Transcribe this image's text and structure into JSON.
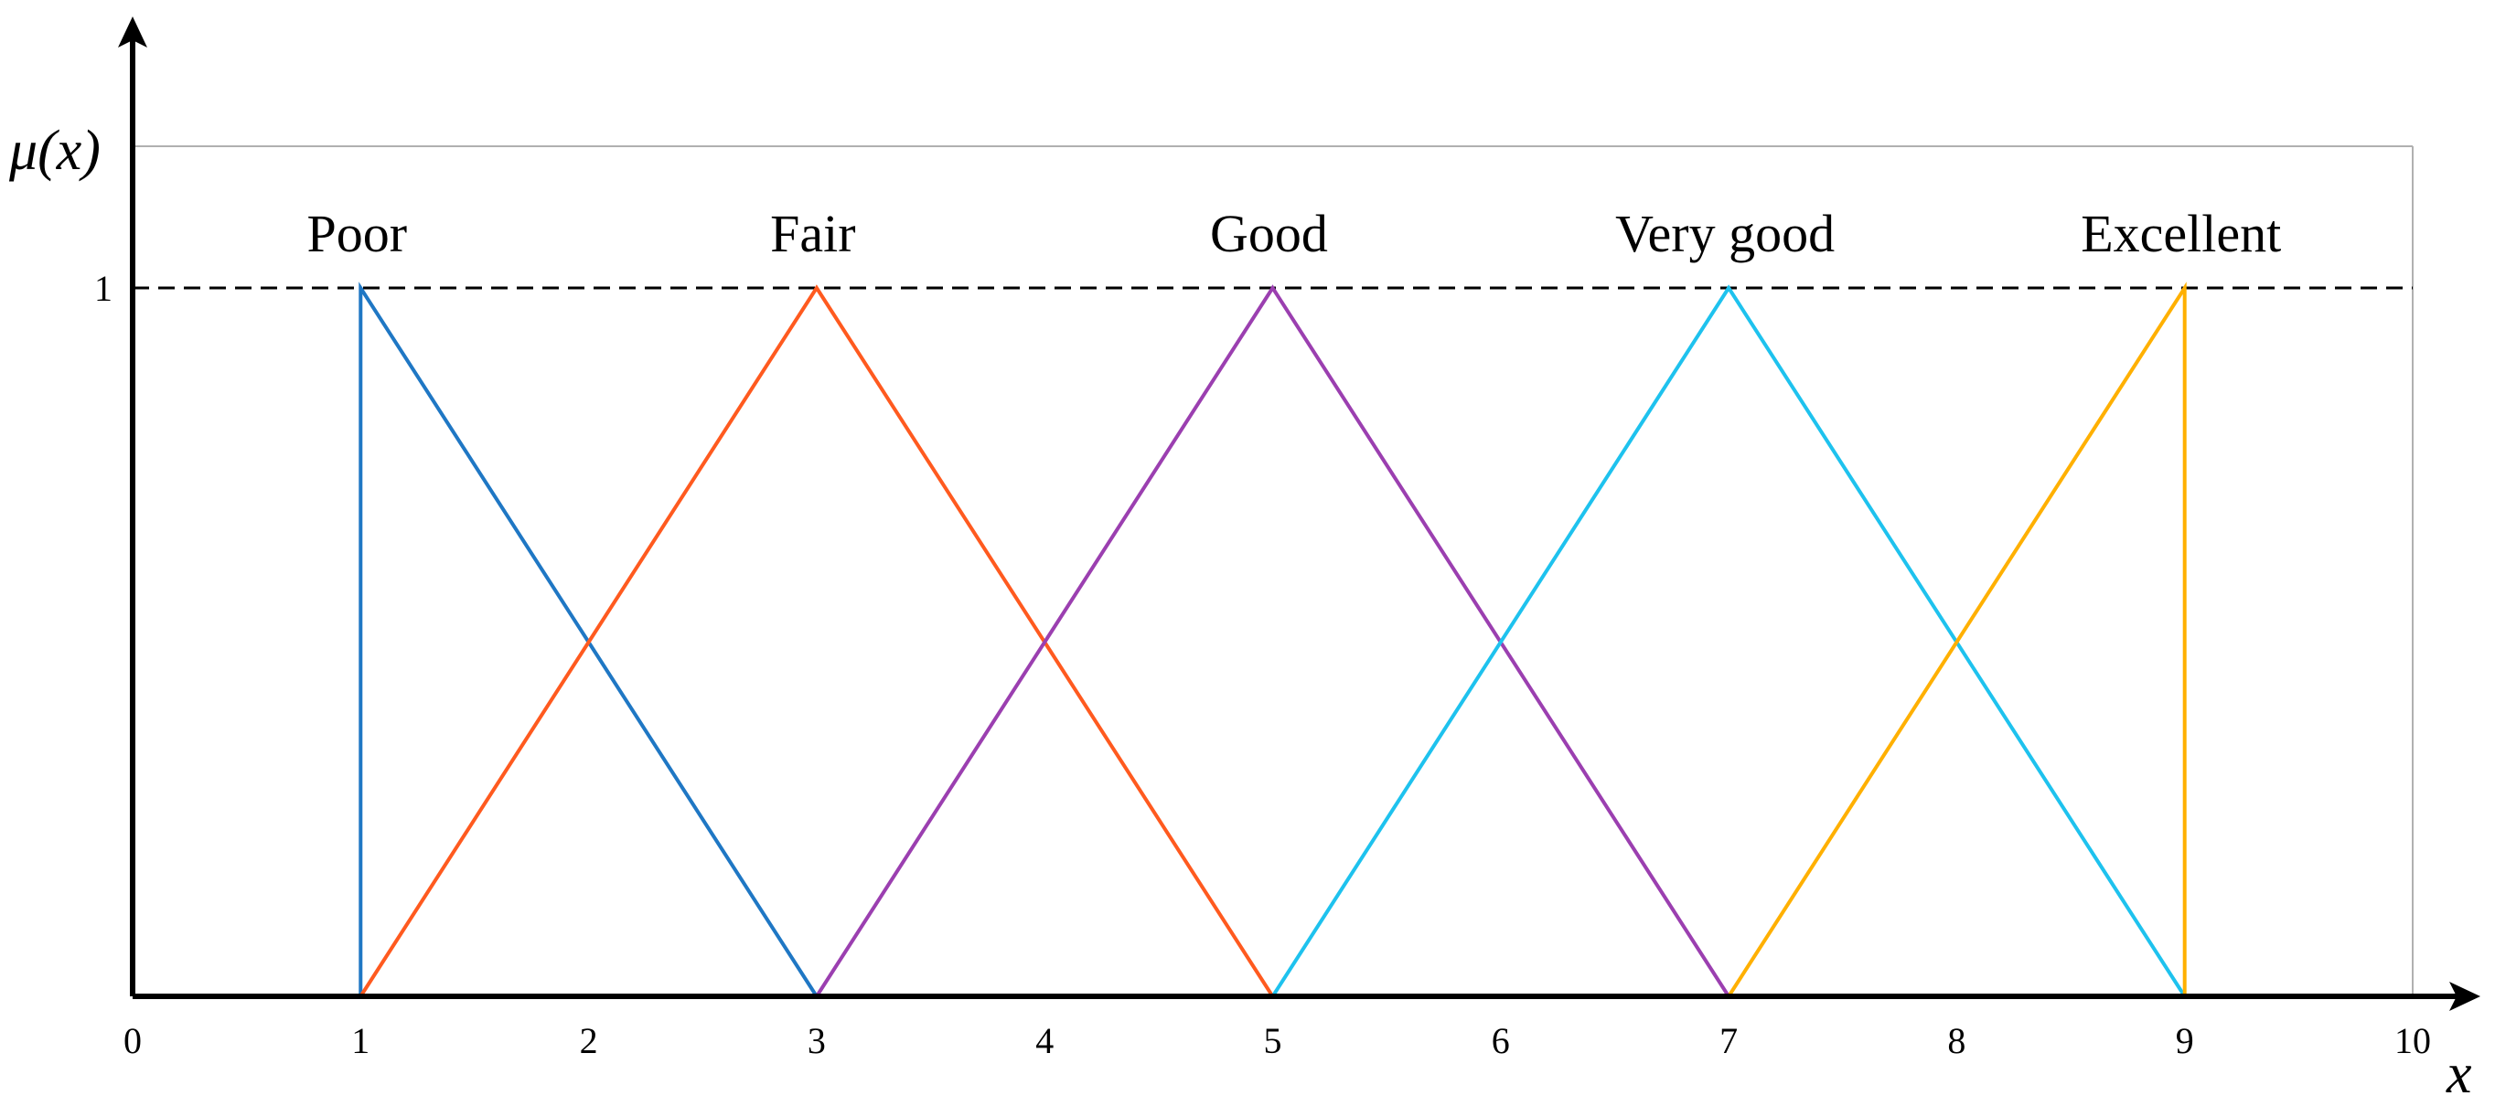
{
  "chart_data": {
    "type": "line",
    "title": "",
    "xlabel": "x",
    "ylabel": "μ(x)",
    "xlim": [
      0,
      10
    ],
    "ylim": [
      0,
      1
    ],
    "xticks": [
      "0",
      "1",
      "2",
      "3",
      "4",
      "5",
      "6",
      "7",
      "8",
      "9",
      "10"
    ],
    "yticks": [
      "1"
    ],
    "grid": false,
    "legend": "none",
    "series": [
      {
        "name": "Poor",
        "x": [
          1,
          1,
          3
        ],
        "y": [
          0,
          1,
          0
        ],
        "color": "#1f77c4"
      },
      {
        "name": "Fair",
        "x": [
          1,
          3,
          5
        ],
        "y": [
          0,
          1,
          0
        ],
        "color": "#ff5a1f"
      },
      {
        "name": "Good",
        "x": [
          3,
          5,
          7
        ],
        "y": [
          0,
          1,
          0
        ],
        "color": "#9b3fb0"
      },
      {
        "name": "Very good",
        "x": [
          5,
          7,
          9
        ],
        "y": [
          0,
          1,
          0
        ],
        "color": "#1ec2ee"
      },
      {
        "name": "Excellent",
        "x": [
          7,
          9,
          9
        ],
        "y": [
          0,
          1,
          0
        ],
        "color": "#ffb000"
      }
    ]
  }
}
